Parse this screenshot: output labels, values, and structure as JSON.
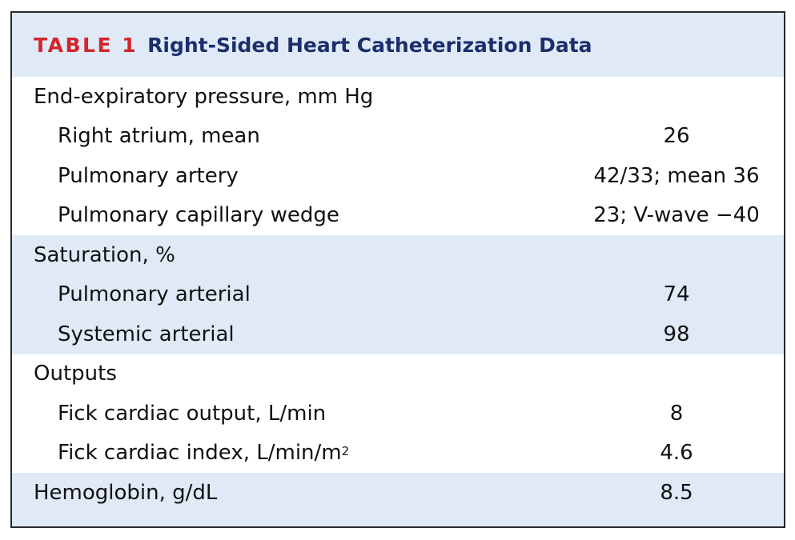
{
  "table": {
    "label": "TABLE 1",
    "title": "Right-Sided Heart Catheterization Data",
    "rows": [
      {
        "name": "End-expiratory pressure, mm Hg",
        "value": ""
      },
      {
        "name": "Right atrium, mean",
        "value": "26"
      },
      {
        "name": "Pulmonary artery",
        "value": "42/33; mean 36"
      },
      {
        "name": "Pulmonary capillary wedge",
        "value": "23; V-wave −40"
      },
      {
        "name": "Saturation, %",
        "value": ""
      },
      {
        "name": "Pulmonary arterial",
        "value": "74"
      },
      {
        "name": "Systemic arterial",
        "value": "98"
      },
      {
        "name": "Outputs",
        "value": ""
      },
      {
        "name": "Fick cardiac output, L/min",
        "value": "8"
      },
      {
        "name": "Fick cardiac index, L/min/m",
        "name_sup": "2",
        "value": "4.6"
      },
      {
        "name": "Hemoglobin, g/dL",
        "value": "8.5"
      }
    ]
  },
  "colors": {
    "label": "#d4242b",
    "title": "#1c2f6b",
    "band": "#dfeaf6"
  }
}
